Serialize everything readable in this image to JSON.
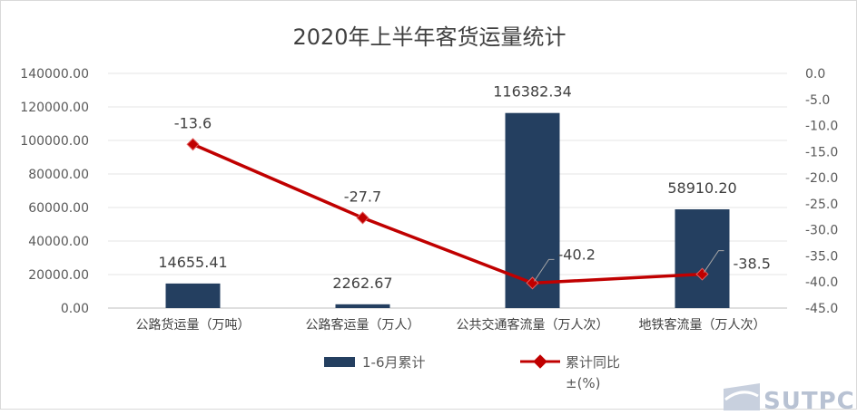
{
  "chart_data": {
    "type": "bar",
    "title": "2020年上半年客货运量统计",
    "categories": [
      "公路货运量（万吨）",
      "公路客运量（万人）",
      "公共交通客流量（万人次）",
      "地铁客流量（万人次）"
    ],
    "series": [
      {
        "name": "1-6月累计",
        "type": "bar",
        "axis": "left",
        "color": "#243f60",
        "values": [
          14655.41,
          2262.67,
          116382.34,
          58910.2
        ],
        "labels": [
          "14655.41",
          "2262.67",
          "116382.34",
          "58910.20"
        ]
      },
      {
        "name_line1": "累计同比",
        "name_line2": "±(%)",
        "type": "line",
        "axis": "right",
        "color": "#c00000",
        "values": [
          -13.6,
          -27.7,
          -40.2,
          -38.5
        ],
        "labels": [
          "-13.6",
          "-27.7",
          "-40.2",
          "-38.5"
        ]
      }
    ],
    "y_left": {
      "min": 0,
      "max": 140000,
      "step": 20000,
      "ticks": [
        "0.00",
        "20000.00",
        "40000.00",
        "60000.00",
        "80000.00",
        "100000.00",
        "120000.00",
        "140000.00"
      ]
    },
    "y_right": {
      "min": -45,
      "max": 0,
      "step": 5,
      "ticks": [
        "0.0",
        "-5.0",
        "-10.0",
        "-15.0",
        "-20.0",
        "-25.0",
        "-30.0",
        "-35.0",
        "-40.0",
        "-45.0"
      ]
    },
    "grid": true,
    "legend_position": "bottom"
  },
  "watermark": {
    "text": "SUTPC"
  }
}
